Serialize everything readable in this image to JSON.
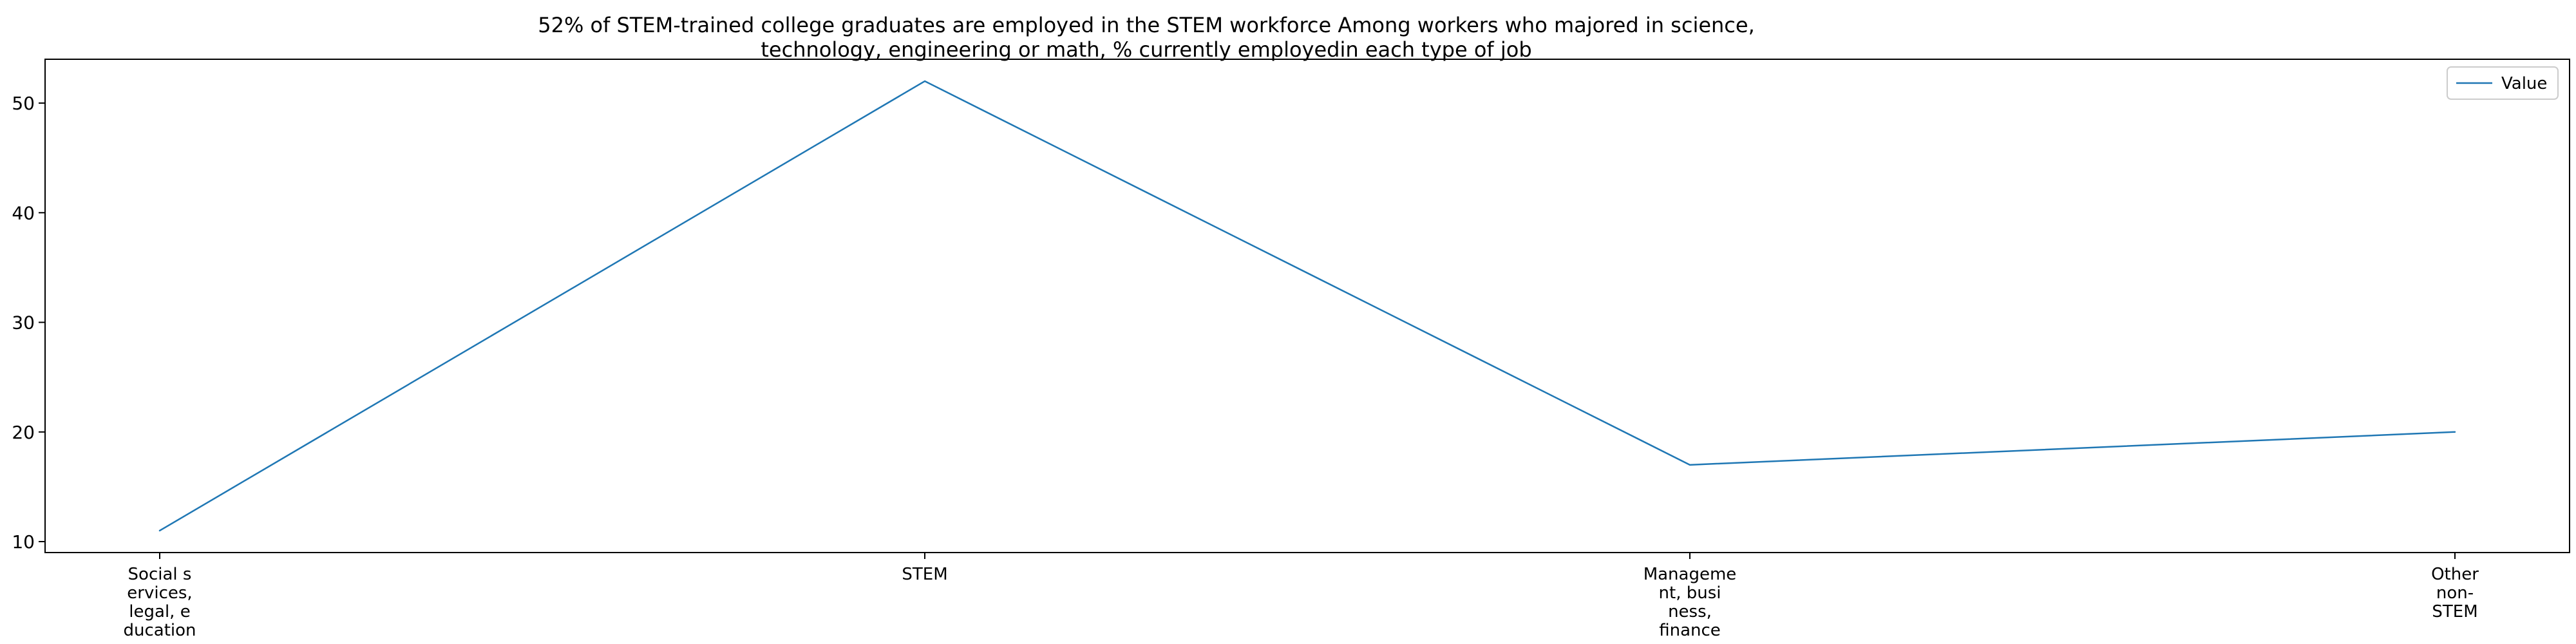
{
  "chart_data": {
    "type": "line",
    "title_lines": [
      "52% of STEM-trained college graduates are employed in the STEM workforce Among workers who majored in science,",
      "technology, engineering or math, % currently employedin each type of job"
    ],
    "categories": [
      "Social s ervices, legal, e ducation",
      "STEM",
      "Manageme nt, busi ness, finance",
      "Other non- STEM"
    ],
    "category_lines": [
      [
        "Social s",
        "ervices,",
        "legal, e",
        "ducation"
      ],
      [
        "STEM"
      ],
      [
        "Manageme",
        "nt, busi",
        "ness,",
        "finance"
      ],
      [
        "Other",
        "non-",
        "STEM"
      ]
    ],
    "series": [
      {
        "name": "Value",
        "values": [
          11,
          52,
          17,
          20
        ],
        "color": "#1f77b4"
      }
    ],
    "y_ticks": [
      10,
      20,
      30,
      40,
      50
    ],
    "ylim": [
      9,
      54
    ],
    "xlabel": "",
    "ylabel": "",
    "grid": false,
    "legend_position": "top-right"
  }
}
